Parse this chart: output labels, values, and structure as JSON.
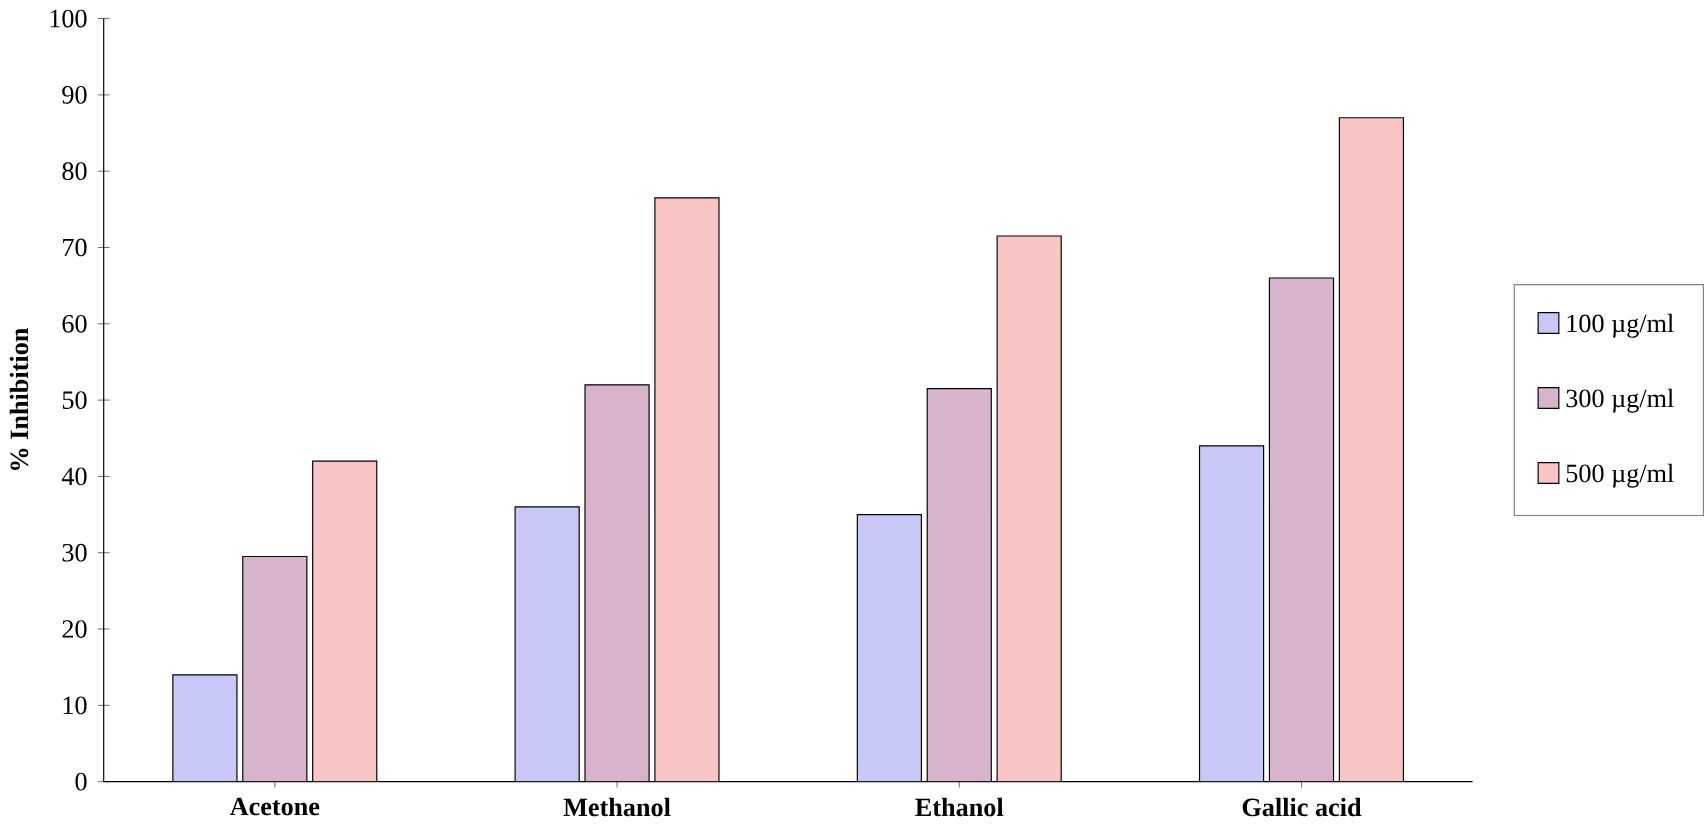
{
  "chart_data": {
    "type": "bar",
    "ylabel": "% Inhibition",
    "categories": [
      "Acetone",
      "Methanol",
      "Ethanol",
      "Gallic acid"
    ],
    "series": [
      {
        "name": "100 µg/ml",
        "color": "#c8c8f8",
        "values": [
          14,
          36,
          35,
          44
        ]
      },
      {
        "name": "300 µg/ml",
        "color": "#d8b4cc",
        "values": [
          29.5,
          52,
          51.5,
          66
        ]
      },
      {
        "name": "500 µg/ml",
        "color": "#f8c4c4",
        "values": [
          42,
          76.5,
          71.5,
          87
        ]
      }
    ],
    "ylim": [
      0,
      100
    ],
    "yticks": [
      0,
      10,
      20,
      30,
      40,
      50,
      60,
      70,
      80,
      90,
      100
    ],
    "grid": false,
    "legend": "right"
  }
}
